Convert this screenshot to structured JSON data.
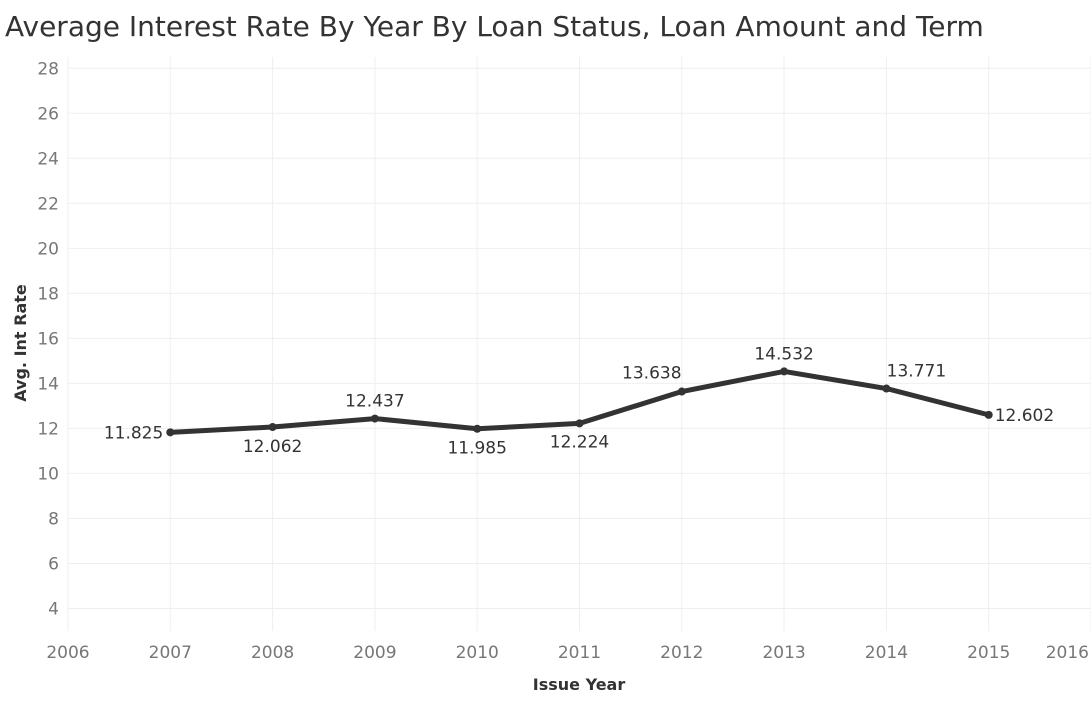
{
  "chart_data": {
    "type": "line",
    "title": "Average Interest Rate By Year By Loan Status, Loan Amount and Term",
    "xlabel": "Issue Year",
    "ylabel": "Avg. Int Rate",
    "x": [
      2007,
      2008,
      2009,
      2010,
      2011,
      2012,
      2013,
      2014,
      2015
    ],
    "series": [
      {
        "values": [
          11.825,
          12.062,
          12.437,
          11.985,
          12.224,
          13.638,
          14.532,
          13.771,
          12.602
        ]
      }
    ],
    "data_labels": [
      "11.825",
      "12.062",
      "12.437",
      "11.985",
      "12.224",
      "13.638",
      "14.532",
      "13.771",
      "12.602"
    ],
    "xlim": [
      2006,
      2016
    ],
    "ylim": [
      3,
      28.5
    ],
    "x_ticks": [
      "2006",
      "2007",
      "2008",
      "2009",
      "2010",
      "2011",
      "2012",
      "2013",
      "2014",
      "2015",
      "2016"
    ],
    "y_ticks": [
      "4",
      "6",
      "8",
      "10",
      "12",
      "14",
      "16",
      "18",
      "20",
      "22",
      "24",
      "26",
      "28"
    ],
    "grid": true,
    "line_color": "#333333"
  }
}
